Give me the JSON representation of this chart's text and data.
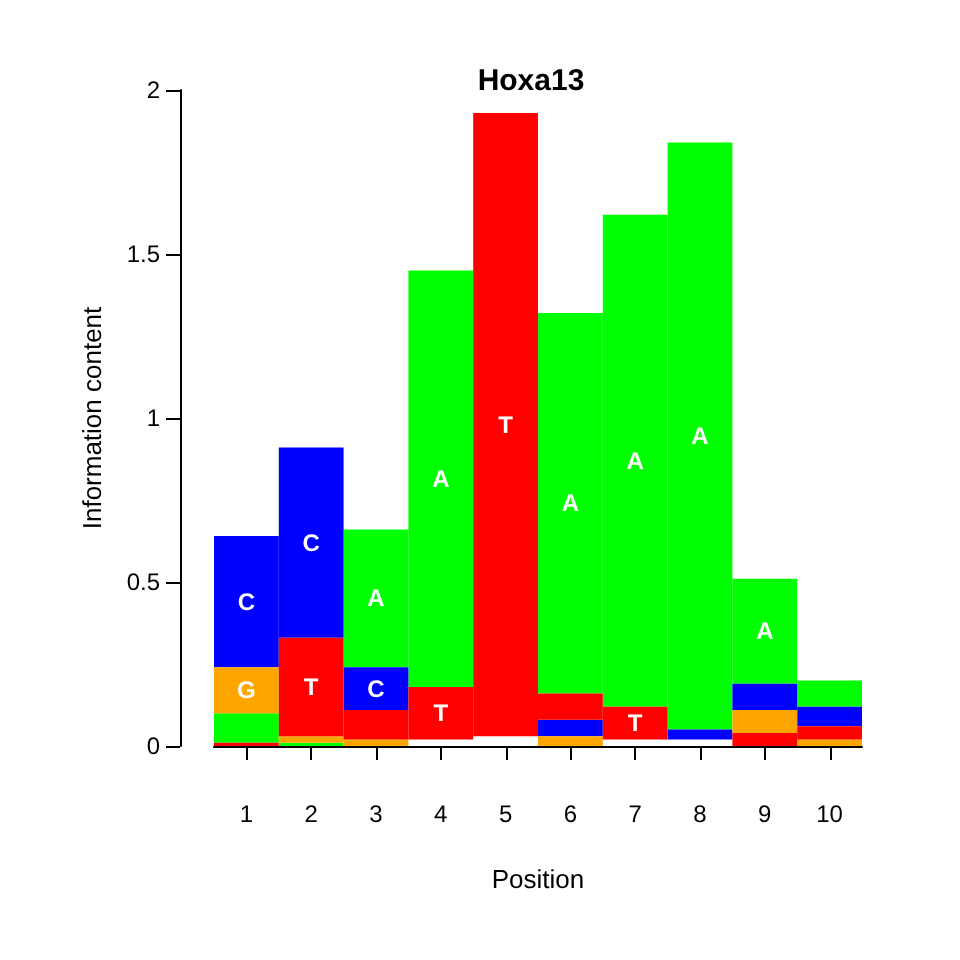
{
  "chart_data": {
    "type": "bar",
    "title": "Hoxa13",
    "xlabel": "Position",
    "ylabel": "Information content",
    "categories": [
      "1",
      "2",
      "3",
      "4",
      "5",
      "6",
      "7",
      "8",
      "9",
      "10"
    ],
    "ylim": [
      0,
      2
    ],
    "yticks": [
      0,
      0.5,
      1,
      1.5,
      2
    ],
    "series": [
      {
        "name": "A",
        "color": "#00ff00",
        "values": [
          0.09,
          0.01,
          0.42,
          1.27,
          null,
          1.16,
          1.5,
          1.79,
          0.32,
          0.08
        ],
        "base": [
          0.01,
          0,
          0.24,
          0.18,
          null,
          0.16,
          0.12,
          0.05,
          0.19,
          0.12
        ]
      },
      {
        "name": "C",
        "color": "#0000ff",
        "values": [
          0.4,
          0.58,
          0.13,
          null,
          null,
          0.05,
          null,
          0.03,
          0.08,
          0.06
        ],
        "base": [
          0.24,
          0.33,
          0.11,
          null,
          null,
          0.03,
          null,
          0.02,
          0.11,
          0.06
        ]
      },
      {
        "name": "G",
        "color": "#ffa500",
        "values": [
          0.14,
          0.02,
          0.02,
          null,
          null,
          0.03,
          null,
          null,
          0.07,
          0.02
        ],
        "base": [
          0.1,
          0.01,
          0,
          null,
          null,
          0,
          null,
          null,
          0.04,
          0
        ]
      },
      {
        "name": "T",
        "color": "#ff0000",
        "values": [
          0.01,
          0.3,
          0.09,
          0.16,
          1.9,
          0.08,
          0.1,
          null,
          0.04,
          0.04
        ],
        "base": [
          0,
          0.03,
          0.02,
          0.02,
          0.03,
          0.08,
          0.02,
          null,
          0,
          0.02
        ]
      }
    ]
  }
}
